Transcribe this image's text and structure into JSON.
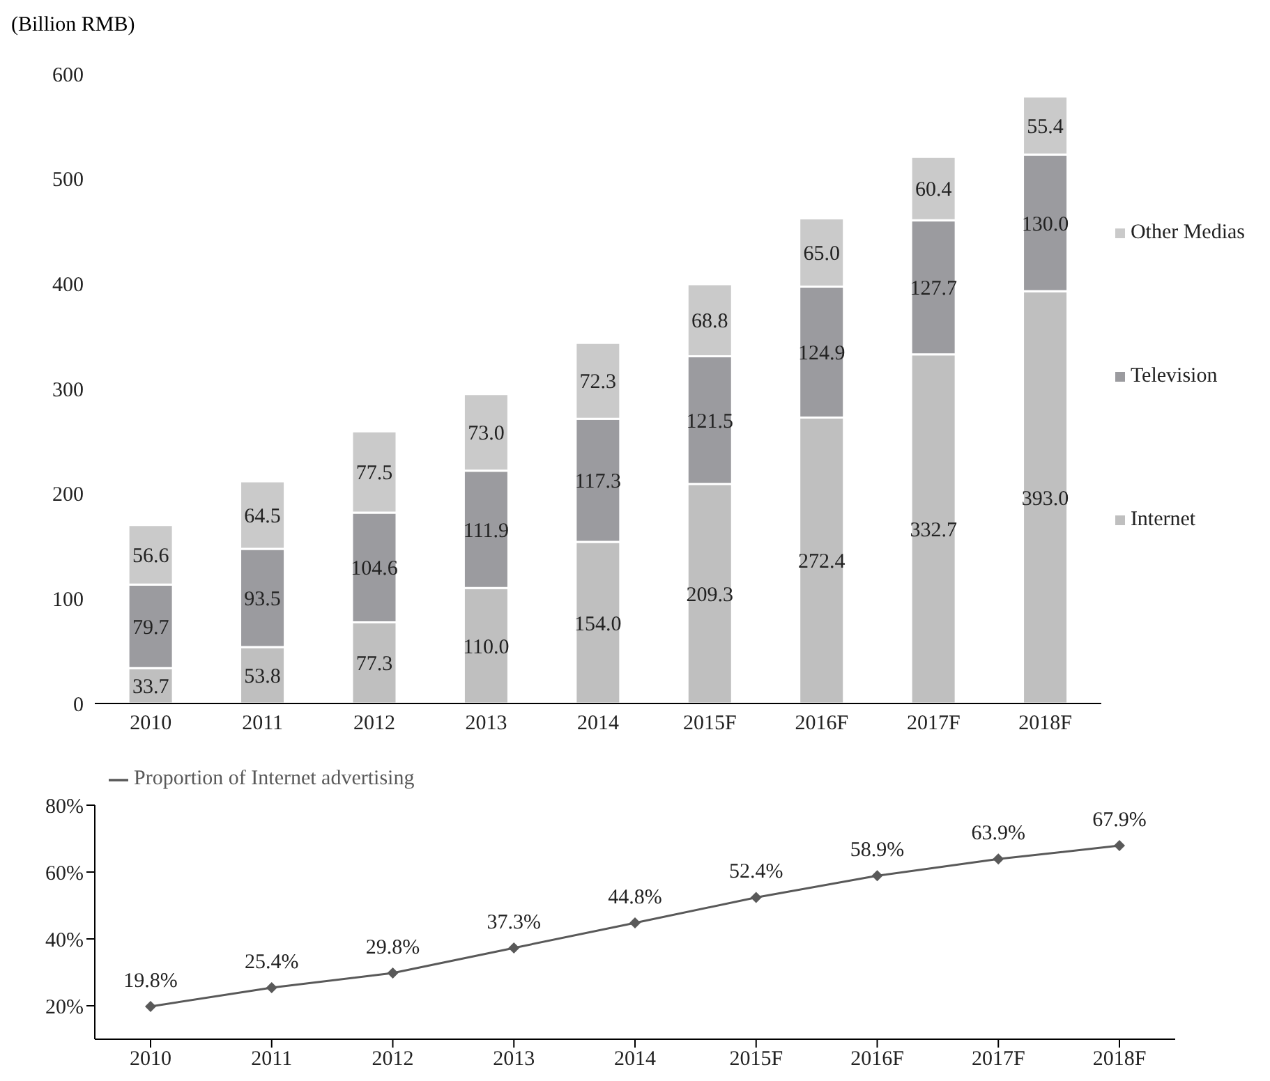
{
  "chart_data": [
    {
      "type": "bar",
      "ylabel": "(Billion RMB)",
      "stacked": true,
      "legend": "right",
      "grid": false,
      "categories": [
        "2010",
        "2011",
        "2012",
        "2013",
        "2014",
        "2015F",
        "2016F",
        "2017F",
        "2018F"
      ],
      "ylim": [
        0,
        600
      ],
      "yticks": [
        0,
        100,
        200,
        300,
        400,
        500,
        600
      ],
      "series": [
        {
          "name": "Internet",
          "color": "#bfbfbf",
          "values": [
            33.7,
            53.8,
            77.3,
            110.0,
            154.0,
            209.3,
            272.4,
            332.7,
            393.0
          ],
          "value_labels": [
            "33.7",
            "53.8",
            "77.3",
            "110.0",
            "154.0",
            "209.3",
            "272.4",
            "332.7",
            "393.0"
          ]
        },
        {
          "name": "Television",
          "color": "#9b9b9f",
          "values": [
            79.7,
            93.5,
            104.6,
            111.9,
            117.3,
            121.5,
            124.9,
            127.7,
            130.0
          ],
          "value_labels": [
            "79.7",
            "93.5",
            "104.6",
            "111.9",
            "117.3",
            "121.5",
            "124.9",
            "127.7",
            "130.0"
          ]
        },
        {
          "name": "Other Medias",
          "color": "#cacaca",
          "values": [
            56.6,
            64.5,
            77.5,
            73.0,
            72.3,
            68.8,
            65.0,
            60.4,
            55.4
          ],
          "value_labels": [
            "56.6",
            "64.5",
            "77.5",
            "73.0",
            "72.3",
            "68.8",
            "65.0",
            "60.4",
            "55.4"
          ]
        }
      ]
    },
    {
      "type": "line",
      "legend": "top left",
      "grid": false,
      "marker": "diamond",
      "line_style": "solid",
      "categories": [
        "2010",
        "2011",
        "2012",
        "2013",
        "2014",
        "2015F",
        "2016F",
        "2017F",
        "2018F"
      ],
      "ylim": [
        10,
        80
      ],
      "yticks": [
        {
          "value": 20,
          "label": "20%"
        },
        {
          "value": 40,
          "label": "40%"
        },
        {
          "value": 60,
          "label": "60%"
        },
        {
          "value": 80,
          "label": "80%"
        }
      ],
      "series": [
        {
          "name": "Proportion of Internet advertising",
          "color": "#595959",
          "values": [
            19.8,
            25.4,
            29.8,
            37.3,
            44.8,
            52.4,
            58.9,
            63.9,
            67.9
          ],
          "value_labels": [
            "19.8%",
            "25.4%",
            "29.8%",
            "37.3%",
            "44.8%",
            "52.4%",
            "58.9%",
            "63.9%",
            "67.9%"
          ]
        }
      ]
    }
  ]
}
